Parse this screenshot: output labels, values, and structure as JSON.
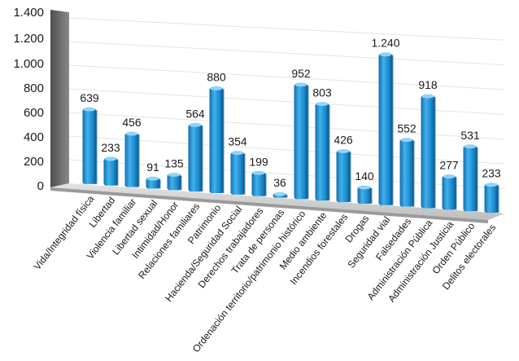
{
  "chart_data": {
    "type": "bar",
    "categories": [
      "Vida/Integridad física",
      "Libertad",
      "Violencia familiar",
      "Libertad sexual",
      "Intimidad/Honor",
      "Relaciones familiares",
      "Patrimonio",
      "Hacienda/Seguridad Social",
      "Derechos trabajadores",
      "Trata de personas",
      "Ordenación territorio/patrimonio histórico",
      "Medio ambiente",
      "Incendios forestales",
      "Drogas",
      "Seguridad vial",
      "Falsedades",
      "Administración Pública",
      "Administración Justicia",
      "Orden Público",
      "Delitos electorales"
    ],
    "values": [
      639,
      233,
      456,
      91,
      135,
      564,
      880,
      354,
      199,
      36,
      952,
      803,
      426,
      140,
      1240,
      552,
      918,
      277,
      531,
      233
    ],
    "value_labels": [
      "639",
      "233",
      "456",
      "91",
      "135",
      "564",
      "880",
      "354",
      "199",
      "36",
      "952",
      "803",
      "426",
      "140",
      "1.240",
      "552",
      "918",
      "277",
      "531",
      "233"
    ],
    "yticks": [
      0,
      200,
      400,
      600,
      800,
      1000,
      1200,
      1400
    ],
    "ytick_labels": [
      "0",
      "200",
      "400",
      "600",
      "800",
      "1.000",
      "1.200",
      "1.400"
    ],
    "ylim": [
      0,
      1400
    ],
    "grid": true,
    "style": "3d-perspective",
    "colors": {
      "bar": "#1f8fd0",
      "bar_light": "#6cc3f0",
      "bar_dark": "#0b5f99",
      "bar_top": "#8fd4f7",
      "wall": "#6f6f6f",
      "floor": "#cfcfcf",
      "grid": "#e3e3e3"
    }
  }
}
